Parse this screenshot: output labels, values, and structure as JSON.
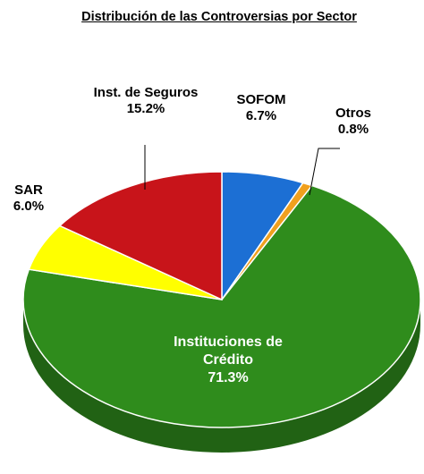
{
  "chart_data": {
    "type": "pie",
    "title": "Distribución de las Controversias por Sector",
    "categories": [
      "SOFOM",
      "Otros",
      "Instituciones de Crédito",
      "SAR",
      "Inst. de Seguros"
    ],
    "values": [
      6.7,
      0.8,
      71.3,
      6.0,
      15.2
    ],
    "value_labels": [
      "6.7%",
      "0.8%",
      "71.3%",
      "6.0%",
      "15.2%"
    ],
    "colors": [
      "#1c6fd4",
      "#f0a01e",
      "#2f8c1c",
      "#ffff00",
      "#c8141a"
    ]
  }
}
